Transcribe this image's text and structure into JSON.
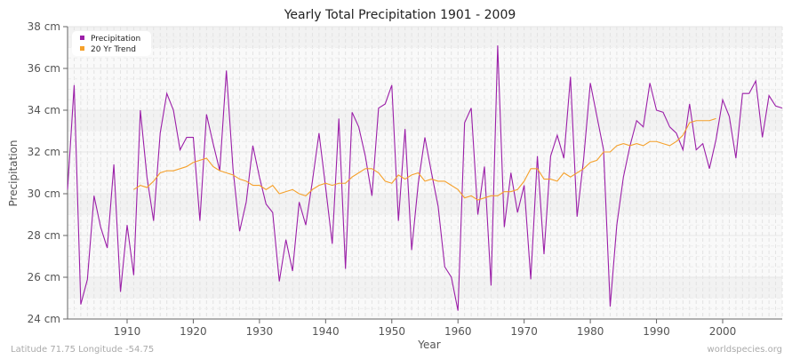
{
  "chart_data": {
    "type": "line",
    "title": "Yearly Total Precipitation 1901 - 2009",
    "xlabel": "Year",
    "ylabel": "Precipitation",
    "ylim": [
      24,
      38
    ],
    "xlim": [
      1901,
      2009
    ],
    "yticks": [
      "24 cm",
      "26 cm",
      "28 cm",
      "30 cm",
      "32 cm",
      "34 cm",
      "36 cm",
      "38 cm"
    ],
    "xticks": [
      1910,
      1920,
      1930,
      1940,
      1950,
      1960,
      1970,
      1980,
      1990,
      2000
    ],
    "legend": {
      "position": "top-left",
      "entries": [
        "Precipitation",
        "20 Yr Trend"
      ]
    },
    "series": [
      {
        "name": "Precipitation",
        "color": "#9b1fa8",
        "x_start": 1901,
        "values": [
          30.2,
          35.2,
          24.7,
          25.9,
          29.9,
          28.4,
          27.4,
          31.4,
          25.3,
          28.5,
          26.1,
          34.0,
          30.8,
          28.7,
          32.9,
          34.8,
          34.0,
          32.1,
          32.7,
          32.7,
          28.7,
          33.8,
          32.4,
          31.1,
          35.9,
          31.2,
          28.2,
          29.6,
          32.3,
          30.8,
          29.5,
          29.1,
          25.8,
          27.8,
          26.3,
          29.6,
          28.5,
          30.6,
          32.9,
          30.3,
          27.6,
          33.6,
          26.4,
          33.9,
          33.2,
          31.8,
          29.9,
          34.1,
          34.3,
          35.2,
          28.7,
          33.1,
          27.3,
          30.5,
          32.7,
          31.0,
          29.4,
          26.5,
          26.0,
          24.4,
          33.4,
          34.1,
          29.0,
          31.3,
          25.6,
          37.1,
          28.4,
          31.0,
          29.1,
          30.4,
          25.9,
          31.8,
          27.1,
          31.8,
          32.8,
          31.7,
          35.6,
          28.9,
          31.7,
          35.3,
          33.7,
          32.1,
          24.6,
          28.5,
          30.8,
          32.3,
          33.5,
          33.2,
          35.3,
          34.0,
          33.9,
          33.2,
          32.9,
          32.1,
          34.3,
          32.1,
          32.4,
          31.2,
          32.6,
          34.5,
          33.7,
          31.7,
          34.8,
          34.8,
          35.4,
          32.7,
          34.7,
          34.2,
          34.1
        ]
      },
      {
        "name": "20 Yr Trend",
        "color": "#f5a02a",
        "x_start": 1911,
        "values": [
          30.2,
          30.4,
          30.3,
          30.6,
          31.0,
          31.1,
          31.1,
          31.2,
          31.3,
          31.5,
          31.6,
          31.7,
          31.3,
          31.1,
          31.0,
          30.9,
          30.7,
          30.6,
          30.4,
          30.4,
          30.2,
          30.4,
          30.0,
          30.1,
          30.2,
          30.0,
          29.9,
          30.2,
          30.4,
          30.5,
          30.4,
          30.5,
          30.5,
          30.8,
          31.0,
          31.2,
          31.2,
          31.0,
          30.6,
          30.5,
          30.9,
          30.7,
          30.9,
          31.0,
          30.6,
          30.7,
          30.6,
          30.6,
          30.4,
          30.2,
          29.8,
          29.9,
          29.7,
          29.8,
          29.9,
          29.9,
          30.1,
          30.1,
          30.2,
          30.6,
          31.2,
          31.2,
          30.7,
          30.7,
          30.6,
          31.0,
          30.8,
          31.0,
          31.2,
          31.5,
          31.6,
          32.0,
          32.0,
          32.3,
          32.4,
          32.3,
          32.4,
          32.3,
          32.5,
          32.5,
          32.4,
          32.3,
          32.5,
          32.8,
          33.4,
          33.5,
          33.5,
          33.5,
          33.6
        ]
      }
    ]
  },
  "footer": {
    "left": "Latitude 71.75 Longitude -54.75",
    "right": "worldspecies.org"
  }
}
